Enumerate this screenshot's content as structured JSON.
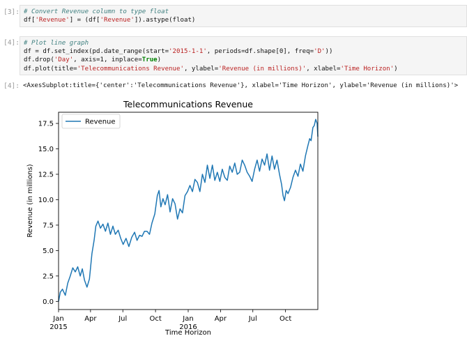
{
  "cells": [
    {
      "prompt": "[3]:",
      "code": [
        [
          {
            "t": "# Convert Revenue column to type float",
            "c": "cm"
          }
        ],
        [
          {
            "t": "df[",
            "c": ""
          },
          {
            "t": "'Revenue'",
            "c": "st"
          },
          {
            "t": "] = (df[",
            "c": ""
          },
          {
            "t": "'Revenue'",
            "c": "st"
          },
          {
            "t": "]).astype(float)",
            "c": ""
          }
        ]
      ]
    },
    {
      "prompt": "[4]:",
      "code": [
        [
          {
            "t": "# Plot line graph",
            "c": "cm"
          }
        ],
        [
          {
            "t": "df = df.set_index(pd.date_range(start=",
            "c": ""
          },
          {
            "t": "'2015-1-1'",
            "c": "st"
          },
          {
            "t": ", periods=df.shape[0], freq=",
            "c": ""
          },
          {
            "t": "'D'",
            "c": "st"
          },
          {
            "t": "))",
            "c": ""
          }
        ],
        [
          {
            "t": "df.drop(",
            "c": ""
          },
          {
            "t": "'Day'",
            "c": "st"
          },
          {
            "t": ", axis=1, inplace=",
            "c": ""
          },
          {
            "t": "True",
            "c": "kw"
          },
          {
            "t": ")",
            "c": ""
          }
        ],
        [
          {
            "t": "df.plot(title=",
            "c": ""
          },
          {
            "t": "'Telecommunications Revenue'",
            "c": "st"
          },
          {
            "t": ", ylabel=",
            "c": ""
          },
          {
            "t": "'Revenue (in millions)'",
            "c": "st"
          },
          {
            "t": ", xlabel=",
            "c": ""
          },
          {
            "t": "'Time Horizon'",
            "c": "st"
          },
          {
            "t": ")",
            "c": ""
          }
        ]
      ]
    }
  ],
  "output": {
    "prompt": "[4]:",
    "text": "<AxesSubplot:title={'center':'Telecommunications Revenue'}, xlabel='Time Horizon', ylabel='Revenue (in millions)'>"
  },
  "chart_data": {
    "type": "line",
    "title": "Telecommunications Revenue",
    "xlabel": "Time Horizon",
    "ylabel": "Revenue (in millions)",
    "x_start": "2015-01-01",
    "x_end": "2016-12-31",
    "ylim": [
      -0.8,
      18.6
    ],
    "yticks": [
      "0.0",
      "2.5",
      "5.0",
      "7.5",
      "10.0",
      "12.5",
      "15.0",
      "17.5"
    ],
    "xticks": [
      {
        "date": "2015-01-01",
        "label": "Jan",
        "sublabel": "2015"
      },
      {
        "date": "2015-04-01",
        "label": "Apr",
        "sublabel": ""
      },
      {
        "date": "2015-07-01",
        "label": "Jul",
        "sublabel": ""
      },
      {
        "date": "2015-10-01",
        "label": "Oct",
        "sublabel": ""
      },
      {
        "date": "2016-01-01",
        "label": "Jan",
        "sublabel": "2016"
      },
      {
        "date": "2016-04-01",
        "label": "Apr",
        "sublabel": ""
      },
      {
        "date": "2016-07-01",
        "label": "Jul",
        "sublabel": ""
      },
      {
        "date": "2016-10-01",
        "label": "Oct",
        "sublabel": ""
      }
    ],
    "legend_position": "upper-left",
    "series": [
      {
        "name": "Revenue",
        "color": "#1f77b4",
        "x": [
          "2015-01-01",
          "2015-01-06",
          "2015-01-12",
          "2015-01-20",
          "2015-01-27",
          "2015-02-03",
          "2015-02-10",
          "2015-02-17",
          "2015-02-24",
          "2015-03-03",
          "2015-03-09",
          "2015-03-15",
          "2015-03-22",
          "2015-03-29",
          "2015-04-05",
          "2015-04-11",
          "2015-04-16",
          "2015-04-22",
          "2015-04-29",
          "2015-05-06",
          "2015-05-13",
          "2015-05-20",
          "2015-05-27",
          "2015-06-03",
          "2015-06-10",
          "2015-06-18",
          "2015-06-25",
          "2015-07-02",
          "2015-07-10",
          "2015-07-18",
          "2015-07-26",
          "2015-08-03",
          "2015-08-10",
          "2015-08-17",
          "2015-08-24",
          "2015-08-31",
          "2015-09-07",
          "2015-09-14",
          "2015-09-21",
          "2015-09-29",
          "2015-10-06",
          "2015-10-11",
          "2015-10-16",
          "2015-10-22",
          "2015-10-28",
          "2015-11-04",
          "2015-11-11",
          "2015-11-18",
          "2015-11-25",
          "2015-12-02",
          "2015-12-09",
          "2015-12-16",
          "2015-12-23",
          "2015-12-30",
          "2016-01-06",
          "2016-01-13",
          "2016-01-20",
          "2016-01-27",
          "2016-02-03",
          "2016-02-10",
          "2016-02-17",
          "2016-02-24",
          "2016-03-02",
          "2016-03-09",
          "2016-03-16",
          "2016-03-23",
          "2016-03-30",
          "2016-04-06",
          "2016-04-13",
          "2016-04-20",
          "2016-04-27",
          "2016-05-04",
          "2016-05-11",
          "2016-05-18",
          "2016-05-25",
          "2016-06-01",
          "2016-06-08",
          "2016-06-15",
          "2016-06-22",
          "2016-06-29",
          "2016-07-06",
          "2016-07-13",
          "2016-07-20",
          "2016-07-27",
          "2016-08-03",
          "2016-08-10",
          "2016-08-17",
          "2016-08-24",
          "2016-08-31",
          "2016-09-07",
          "2016-09-14",
          "2016-09-20",
          "2016-09-24",
          "2016-09-28",
          "2016-10-03",
          "2016-10-08",
          "2016-10-15",
          "2016-10-22",
          "2016-10-29",
          "2016-11-05",
          "2016-11-12",
          "2016-11-19",
          "2016-11-26",
          "2016-12-03",
          "2016-12-08",
          "2016-12-12",
          "2016-12-17",
          "2016-12-21",
          "2016-12-25",
          "2016-12-29",
          "2016-12-31"
        ],
        "values": [
          0.0,
          0.9,
          1.2,
          0.6,
          1.8,
          2.5,
          3.3,
          2.9,
          3.4,
          2.5,
          3.2,
          2.1,
          1.4,
          2.2,
          4.7,
          6.0,
          7.4,
          7.9,
          7.2,
          7.6,
          6.9,
          7.7,
          6.6,
          7.4,
          6.6,
          7.0,
          6.2,
          5.6,
          6.2,
          5.4,
          6.3,
          6.8,
          6.0,
          6.5,
          6.4,
          6.9,
          6.9,
          6.6,
          7.7,
          8.6,
          10.4,
          10.9,
          9.3,
          10.1,
          9.5,
          10.5,
          8.8,
          10.1,
          9.6,
          8.1,
          9.1,
          8.7,
          10.4,
          10.8,
          11.4,
          10.8,
          12.0,
          11.7,
          10.8,
          12.5,
          11.7,
          13.4,
          12.1,
          13.4,
          11.9,
          12.7,
          11.8,
          13.0,
          12.2,
          11.9,
          13.3,
          12.7,
          13.6,
          12.5,
          12.7,
          13.9,
          13.4,
          12.7,
          12.3,
          11.8,
          13.0,
          13.9,
          12.8,
          14.0,
          13.4,
          14.5,
          12.9,
          14.3,
          13.0,
          13.9,
          12.5,
          11.5,
          10.4,
          9.9,
          10.9,
          10.6,
          11.2,
          12.2,
          12.9,
          12.3,
          13.5,
          12.8,
          14.3,
          15.3,
          16.0,
          15.8,
          17.1,
          17.3,
          17.9,
          17.5,
          16.2
        ]
      }
    ]
  }
}
